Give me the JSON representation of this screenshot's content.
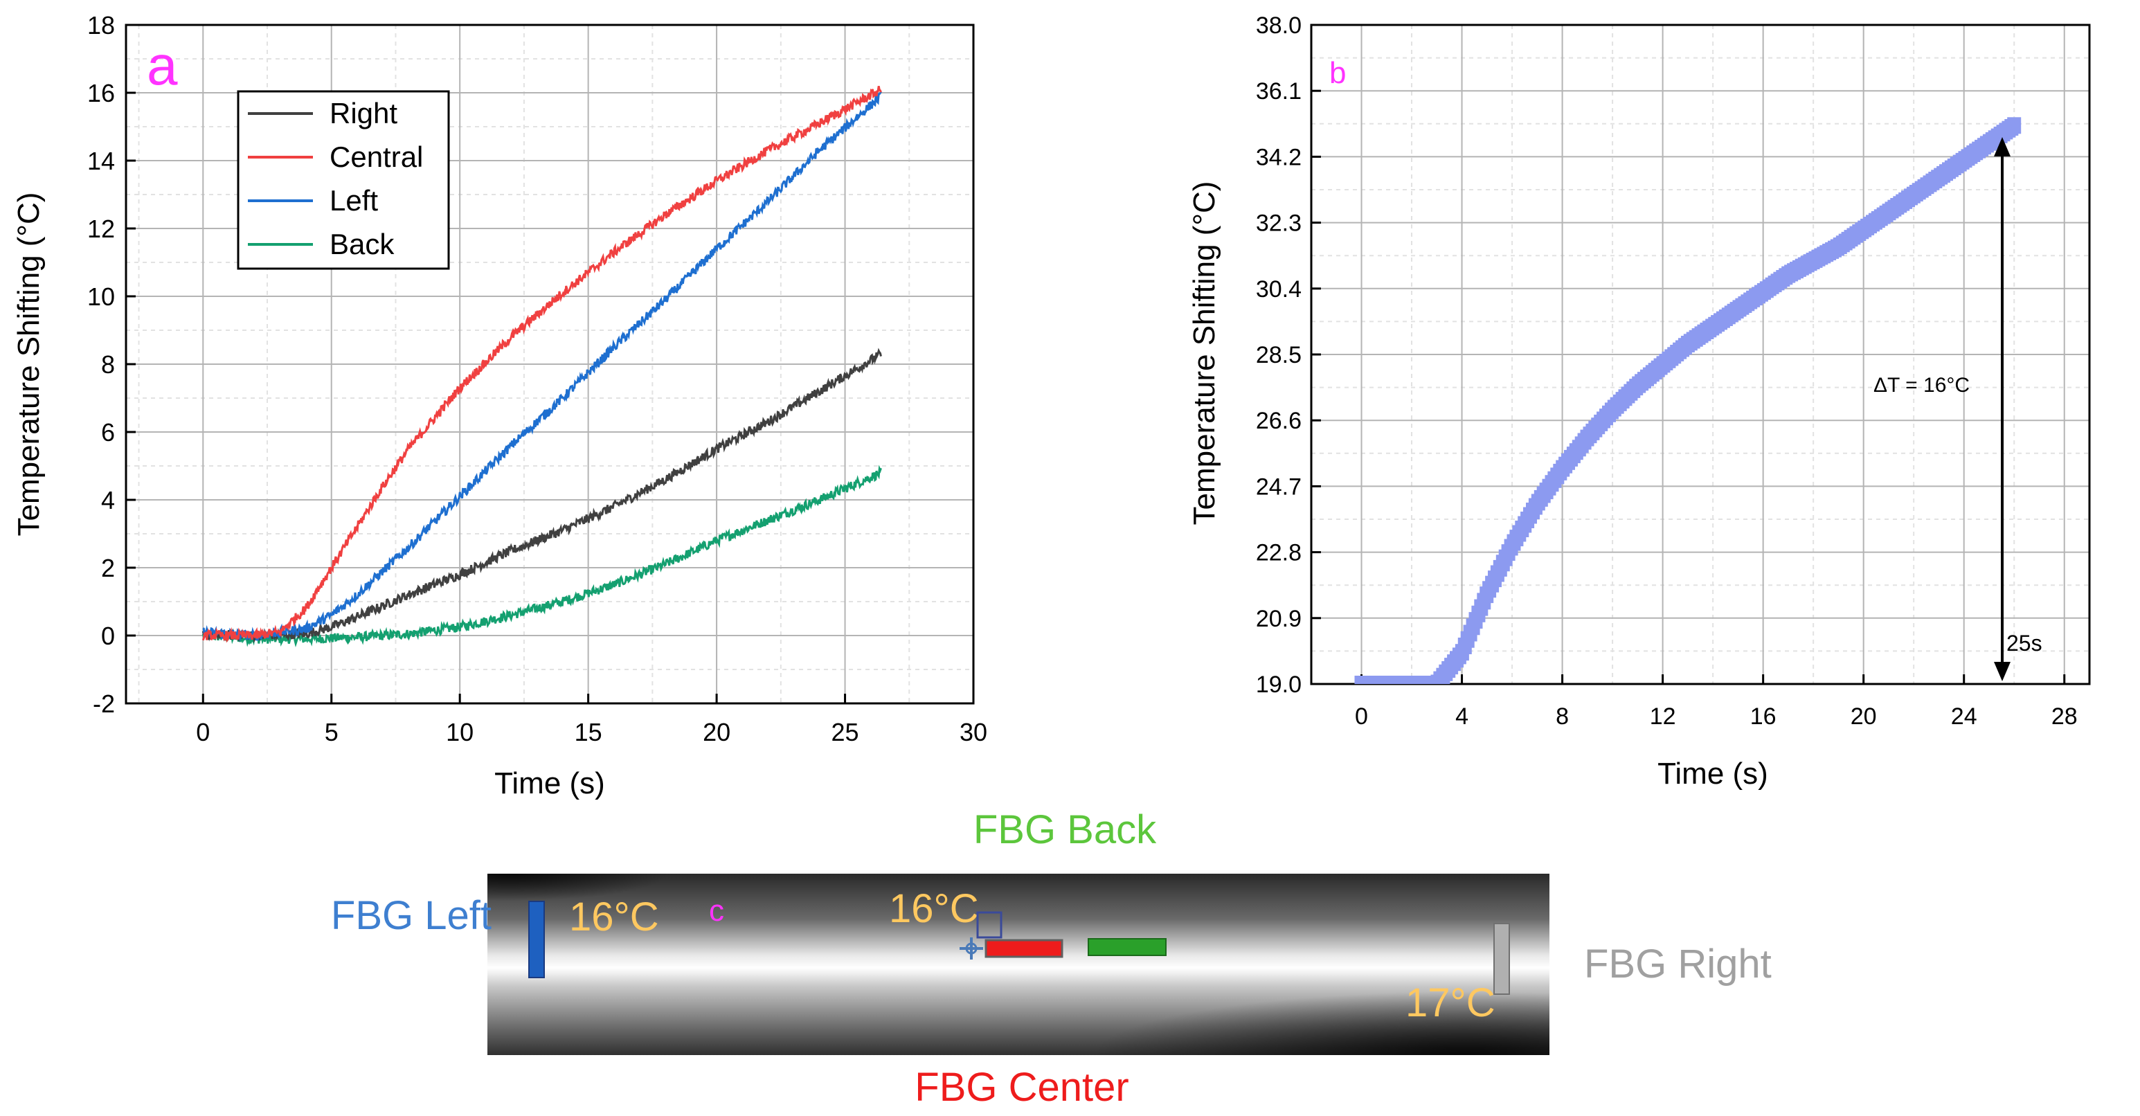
{
  "chart_data": [
    {
      "panel": "a",
      "type": "line",
      "panel_label": "a",
      "xlabel": "Time (s)",
      "ylabel": "Temperature Shifting (°C)",
      "xlim": [
        -3,
        30
      ],
      "ylim": [
        -2,
        18
      ],
      "xticks": [
        0,
        5,
        10,
        15,
        20,
        25,
        30
      ],
      "yticks": [
        -2,
        0,
        2,
        4,
        6,
        8,
        10,
        12,
        14,
        16,
        18
      ],
      "grid": true,
      "legend_position": "top-left",
      "series": [
        {
          "name": "Right",
          "color": "#404040",
          "x": [
            0,
            2,
            4,
            5,
            6,
            8,
            10,
            12,
            14,
            16,
            18,
            20,
            22,
            24,
            26.4
          ],
          "y": [
            0,
            0,
            0.05,
            0.25,
            0.55,
            1.2,
            1.8,
            2.5,
            3.1,
            3.8,
            4.6,
            5.5,
            6.3,
            7.2,
            8.3
          ]
        },
        {
          "name": "Central",
          "color": "#f04040",
          "x": [
            0,
            2,
            3,
            4,
            5,
            6,
            7,
            8,
            10,
            12,
            14,
            16,
            18,
            20,
            22,
            24,
            26.4
          ],
          "y": [
            0,
            0,
            0.1,
            0.8,
            2.0,
            3.2,
            4.4,
            5.5,
            7.3,
            8.8,
            10.1,
            11.3,
            12.4,
            13.4,
            14.3,
            15.1,
            16.1
          ]
        },
        {
          "name": "Left",
          "color": "#1e6fd0",
          "x": [
            0,
            2,
            4,
            5,
            6,
            8,
            10,
            12,
            14,
            16,
            18,
            20,
            22,
            24,
            26.4
          ],
          "y": [
            0.1,
            0,
            0.2,
            0.6,
            1.2,
            2.6,
            4.1,
            5.6,
            7.0,
            8.5,
            9.9,
            11.4,
            12.8,
            14.3,
            15.9
          ]
        },
        {
          "name": "Back",
          "color": "#14a070",
          "x": [
            0,
            2,
            4,
            6,
            8,
            10,
            12,
            14,
            16,
            18,
            20,
            22,
            24,
            26.4
          ],
          "y": [
            0,
            -0.1,
            -0.1,
            -0.05,
            0.05,
            0.25,
            0.6,
            1.0,
            1.5,
            2.1,
            2.8,
            3.4,
            4.0,
            4.8
          ]
        }
      ]
    },
    {
      "panel": "b",
      "type": "scatter",
      "panel_label": "b",
      "xlabel": "Time (s)",
      "ylabel": "Temperature Shifting (°C)",
      "xlim": [
        -2,
        29
      ],
      "ylim": [
        19.0,
        38.0
      ],
      "xticks": [
        0,
        4,
        8,
        12,
        16,
        20,
        24,
        28
      ],
      "yticks": [
        "19.0",
        "20.9",
        "22.8",
        "24.7",
        "26.6",
        "28.5",
        "30.4",
        "32.3",
        "34.2",
        "36.1",
        "38.0"
      ],
      "grid": true,
      "series": [
        {
          "color": "#8c9af0",
          "x": [
            0,
            1,
            2,
            3,
            4,
            5,
            6,
            7,
            8,
            9,
            10,
            11,
            12,
            13,
            14,
            15,
            16,
            17,
            18,
            19,
            20,
            21,
            22,
            23,
            24,
            25,
            26
          ],
          "y": [
            19.0,
            19.0,
            19.0,
            19.0,
            19.9,
            21.6,
            23.0,
            24.2,
            25.2,
            26.1,
            26.9,
            27.6,
            28.2,
            28.8,
            29.3,
            29.8,
            30.3,
            30.8,
            31.2,
            31.6,
            32.1,
            32.6,
            33.1,
            33.6,
            34.1,
            34.6,
            35.1
          ]
        }
      ],
      "annotations": {
        "delta_t": "ΔT = 16°C",
        "duration": "25s"
      }
    }
  ],
  "thermal_image": {
    "panel_label": "c",
    "labels": {
      "back": "FBG Back",
      "left": "FBG Left",
      "right": "FBG Right",
      "center": "FBG Center"
    },
    "temps": {
      "left": "16°C",
      "center": "16°C",
      "right": "17°C"
    },
    "colors": {
      "back": "#5cc63c",
      "left": "#3e7fd0",
      "right": "#a0a0a0",
      "center": "#e82020",
      "temp": "#ffc860"
    }
  }
}
